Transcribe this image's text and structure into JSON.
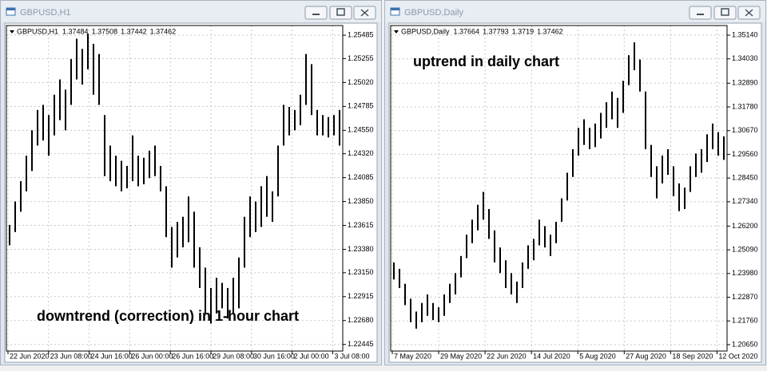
{
  "chart_data": [
    {
      "type": "hilo",
      "window_title": "GBPUSD,H1",
      "title": "GBPUSD,H1",
      "ohlc": [
        1.37484,
        1.37508,
        1.37442,
        1.37462
      ],
      "annotation": "downtrend (correction) in 1-hour chart",
      "color": "#000000",
      "grid": true,
      "ylim": [
        1.2238,
        1.2558
      ],
      "yticks": [
        1.25485,
        1.25255,
        {
          "value": 1.2502,
          "label": "1.25020"
        },
        1.24785,
        {
          "value": 1.2455,
          "label": "1.24550"
        },
        {
          "value": 1.2432,
          "label": "1.24320"
        },
        1.24085,
        {
          "value": 1.2385,
          "label": "1.23850"
        },
        1.23615,
        {
          "value": 1.2338,
          "label": "1.23380"
        },
        {
          "value": 1.2315,
          "label": "1.23150"
        },
        1.22915,
        {
          "value": 1.2268,
          "label": "1.22680"
        },
        1.22445
      ],
      "xtick_labels": [
        "22 Jun 2020",
        "23 Jun 08:00",
        "24 Jun 16:00",
        "26 Jun 00:00",
        "26 Jun 16:00",
        "29 Jun 08:00",
        "30 Jun 16:00",
        "2 Jul 00:00",
        "3 Jul 08:00"
      ],
      "high": [
        1.2362,
        1.2385,
        1.2405,
        1.243,
        1.2455,
        1.2475,
        1.248,
        1.247,
        1.249,
        1.2505,
        1.2495,
        1.2525,
        1.2545,
        1.2535,
        1.255,
        1.254,
        1.253,
        1.247,
        1.244,
        1.243,
        1.2425,
        1.242,
        1.245,
        1.243,
        1.2428,
        1.2435,
        1.244,
        1.242,
        1.24,
        1.236,
        1.2365,
        1.237,
        1.239,
        1.2375,
        1.234,
        1.232,
        1.23,
        1.231,
        1.2305,
        1.23,
        1.231,
        1.233,
        1.237,
        1.239,
        1.2385,
        1.24,
        1.241,
        1.2395,
        1.244,
        1.248,
        1.2478,
        1.2475,
        1.249,
        1.253,
        1.252,
        1.2475,
        1.247,
        1.2468,
        1.247,
        1.2475
      ],
      "low": [
        1.2342,
        1.2355,
        1.2375,
        1.2395,
        1.2415,
        1.244,
        1.2445,
        1.243,
        1.245,
        1.2465,
        1.2455,
        1.248,
        1.2505,
        1.25,
        1.2515,
        1.249,
        1.248,
        1.241,
        1.2405,
        1.24,
        1.2395,
        1.2398,
        1.2405,
        1.24,
        1.2402,
        1.2408,
        1.241,
        1.2395,
        1.235,
        1.232,
        1.233,
        1.234,
        1.2345,
        1.232,
        1.23,
        1.2275,
        1.2265,
        1.2275,
        1.228,
        1.227,
        1.2275,
        1.228,
        1.232,
        1.235,
        1.2355,
        1.236,
        1.237,
        1.2365,
        1.239,
        1.244,
        1.245,
        1.2455,
        1.246,
        1.248,
        1.247,
        1.245,
        1.245,
        1.2448,
        1.245,
        1.244
      ]
    },
    {
      "type": "hilo",
      "window_title": "GBPUSD,Daily",
      "title": "GBPUSD,Daily",
      "ohlc": [
        1.37664,
        1.37793,
        1.3719,
        1.37462
      ],
      "annotation": "uptrend in daily chart",
      "color": "#000000",
      "grid": true,
      "ylim": [
        1.2035,
        1.3559
      ],
      "yticks": [
        {
          "value": 1.3514,
          "label": "1.35140"
        },
        {
          "value": 1.3403,
          "label": "1.34030"
        },
        {
          "value": 1.3289,
          "label": "1.32890"
        },
        {
          "value": 1.3178,
          "label": "1.31780"
        },
        {
          "value": 1.3067,
          "label": "1.30670"
        },
        {
          "value": 1.2956,
          "label": "1.29560"
        },
        {
          "value": 1.2845,
          "label": "1.28450"
        },
        {
          "value": 1.2734,
          "label": "1.27340"
        },
        {
          "value": 1.262,
          "label": "1.26200"
        },
        {
          "value": 1.2509,
          "label": "1.25090"
        },
        {
          "value": 1.2398,
          "label": "1.23980"
        },
        {
          "value": 1.2287,
          "label": "1.22870"
        },
        {
          "value": 1.2176,
          "label": "1.21760"
        },
        {
          "value": 1.2065,
          "label": "1.20650"
        }
      ],
      "xtick_labels": [
        "7 May 2020",
        "29 May 2020",
        "22 Jun 2020",
        "14 Jul 2020",
        "5 Aug 2020",
        "27 Aug 2020",
        "18 Sep 2020",
        "12 Oct 2020"
      ],
      "high": [
        1.245,
        1.242,
        1.235,
        1.228,
        1.222,
        1.226,
        1.23,
        1.226,
        1.224,
        1.23,
        1.235,
        1.24,
        1.248,
        1.258,
        1.265,
        1.272,
        1.278,
        1.27,
        1.26,
        1.252,
        1.246,
        1.24,
        1.236,
        1.245,
        1.253,
        1.256,
        1.265,
        1.262,
        1.258,
        1.264,
        1.275,
        1.287,
        1.298,
        1.308,
        1.312,
        1.308,
        1.31,
        1.315,
        1.32,
        1.325,
        1.322,
        1.33,
        1.342,
        1.348,
        1.34,
        1.325,
        1.3,
        1.29,
        1.295,
        1.298,
        1.29,
        1.282,
        1.28,
        1.29,
        1.296,
        1.298,
        1.305,
        1.31,
        1.306,
        1.304
      ],
      "low": [
        1.237,
        1.233,
        1.225,
        1.217,
        1.214,
        1.217,
        1.22,
        1.218,
        1.217,
        1.22,
        1.226,
        1.23,
        1.238,
        1.247,
        1.254,
        1.26,
        1.265,
        1.256,
        1.245,
        1.24,
        1.233,
        1.23,
        1.226,
        1.233,
        1.242,
        1.246,
        1.253,
        1.252,
        1.248,
        1.254,
        1.264,
        1.274,
        1.285,
        1.295,
        1.3,
        1.298,
        1.299,
        1.303,
        1.308,
        1.312,
        1.308,
        1.315,
        1.328,
        1.335,
        1.325,
        1.298,
        1.285,
        1.275,
        1.282,
        1.286,
        1.276,
        1.269,
        1.27,
        1.278,
        1.285,
        1.287,
        1.292,
        1.298,
        1.295,
        1.293
      ]
    }
  ]
}
